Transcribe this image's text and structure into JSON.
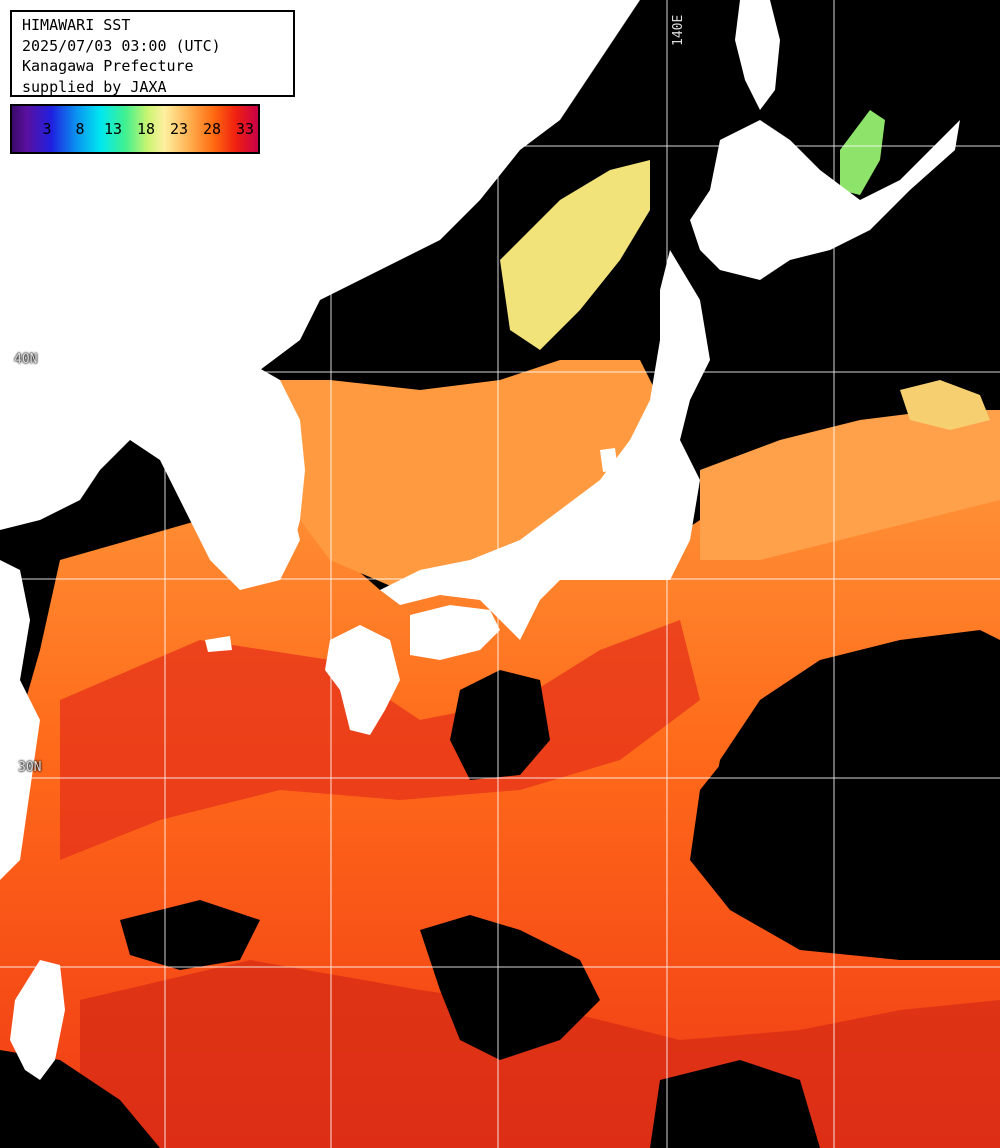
{
  "header": {
    "title": "HIMAWARI SST",
    "datetime": "2025/07/03 03:00 (UTC)",
    "region": "Kanagawa Prefecture",
    "credit": "supplied by JAXA"
  },
  "colorbar": {
    "unit_hint": "°C",
    "ticks": [
      "3",
      "8",
      "13",
      "18",
      "23",
      "28",
      "33"
    ],
    "colors": {
      "cold": "#3a0a6a",
      "cool": "#0a90f0",
      "mild": "#c8f470",
      "warm": "#ffb050",
      "hot": "#ff6a10",
      "hottest": "#c80048"
    }
  },
  "grid": {
    "lon_label": "140E",
    "lat_labels": [
      "40N",
      "30N"
    ]
  },
  "map": {
    "land_color": "#ffffff",
    "cloud_color": "#000000",
    "grid_color": "#ffffff"
  }
}
